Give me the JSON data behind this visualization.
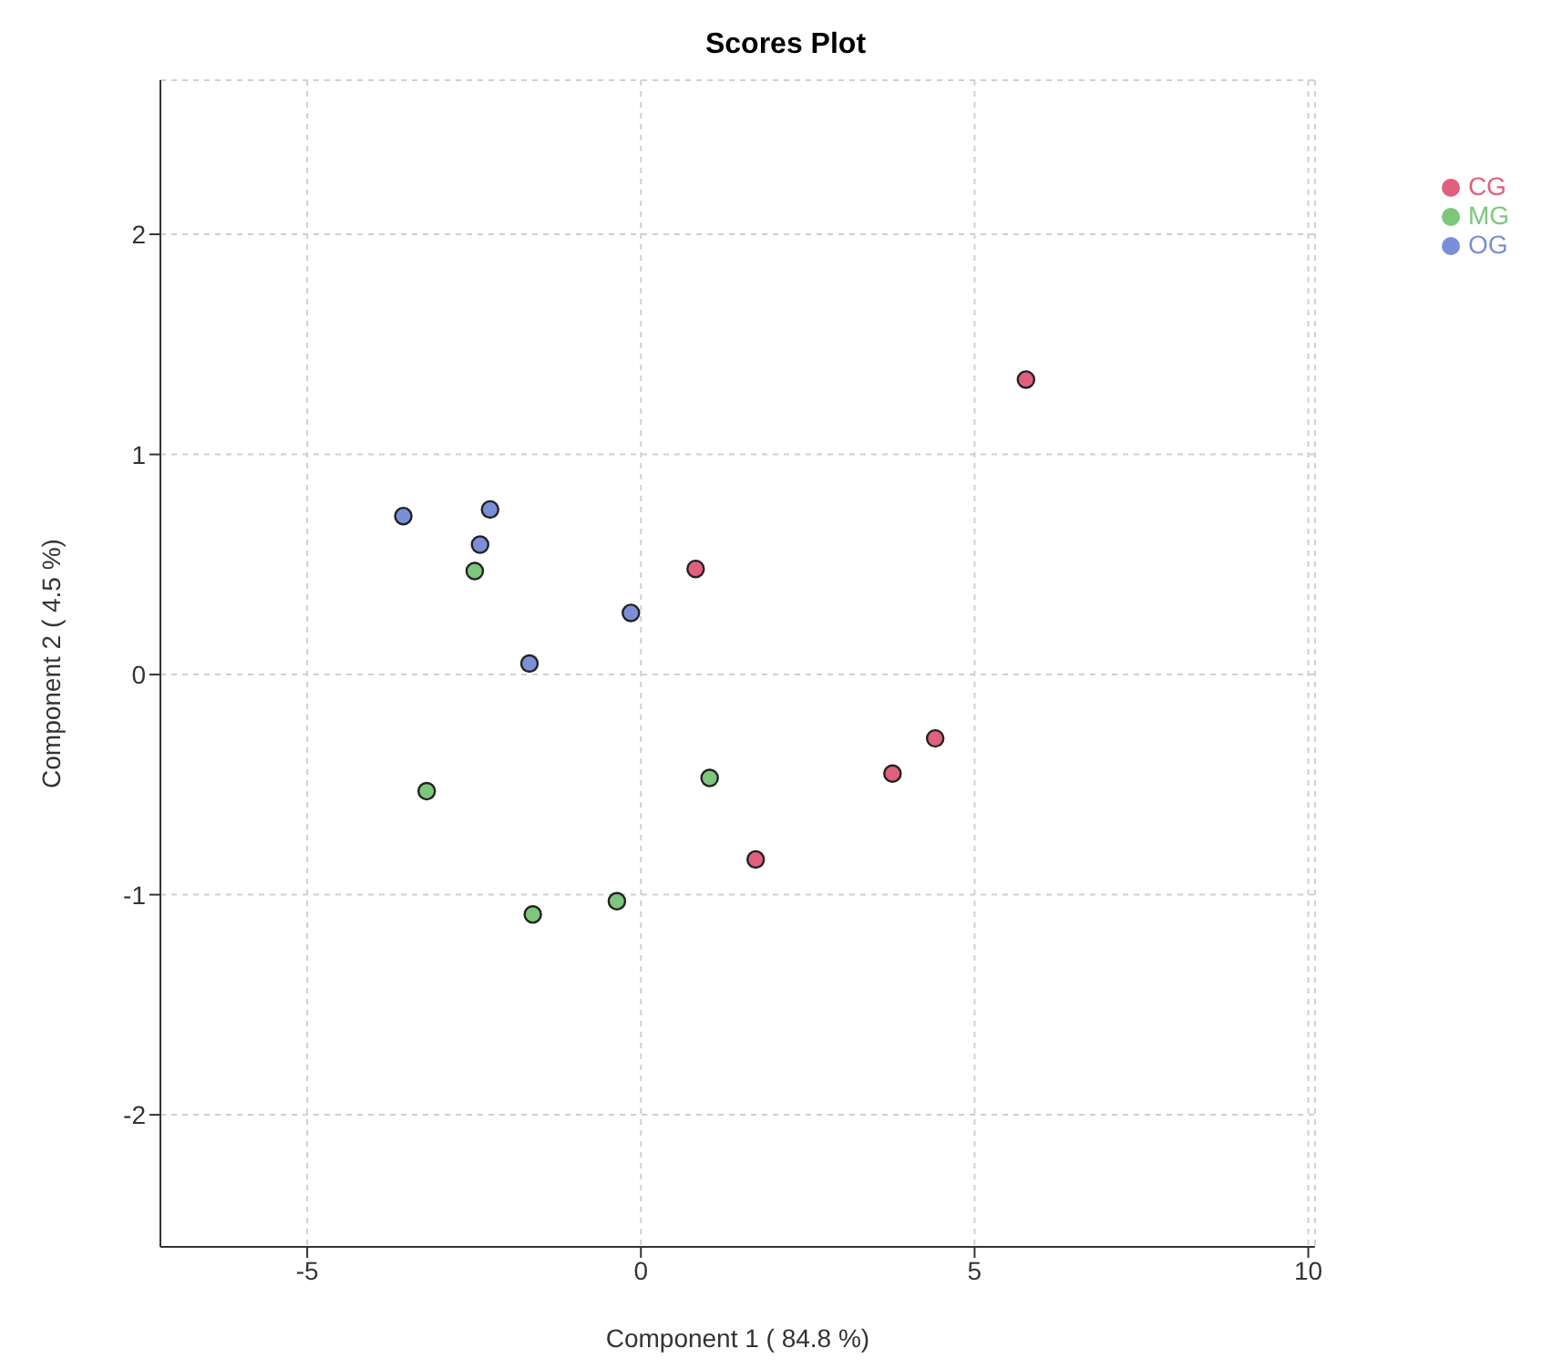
{
  "chart_data": {
    "type": "scatter",
    "title": "Scores Plot",
    "xlabel": "Component 1 ( 84.8 %)",
    "ylabel": "Component 2 ( 4.5 %)",
    "series": [
      {
        "name": "CG",
        "color": "#e0607e",
        "x": [
          5.77,
          0.82,
          4.41,
          3.77,
          1.72
        ],
        "values": [
          1.34,
          0.48,
          -0.29,
          -0.45,
          -0.84
        ]
      },
      {
        "name": "MG",
        "color": "#7dc77d",
        "x": [
          -2.49,
          -3.21,
          1.03,
          -1.62,
          -0.36
        ],
        "values": [
          0.47,
          -0.53,
          -0.47,
          -1.09,
          -1.03
        ]
      },
      {
        "name": "OG",
        "color": "#7b8fd9",
        "x": [
          -3.56,
          -2.26,
          -2.41,
          -0.15,
          -1.67
        ],
        "values": [
          0.72,
          0.75,
          0.59,
          0.28,
          0.05
        ]
      }
    ],
    "xlim": [
      -7.2,
      10.1
    ],
    "xticks": [
      -5,
      0,
      5,
      10
    ],
    "ylim": [
      -2.6,
      2.7
    ],
    "yticks": [
      -2,
      -1,
      0,
      1,
      2
    ],
    "grid": true,
    "legend": "top right",
    "marker": "circle"
  }
}
